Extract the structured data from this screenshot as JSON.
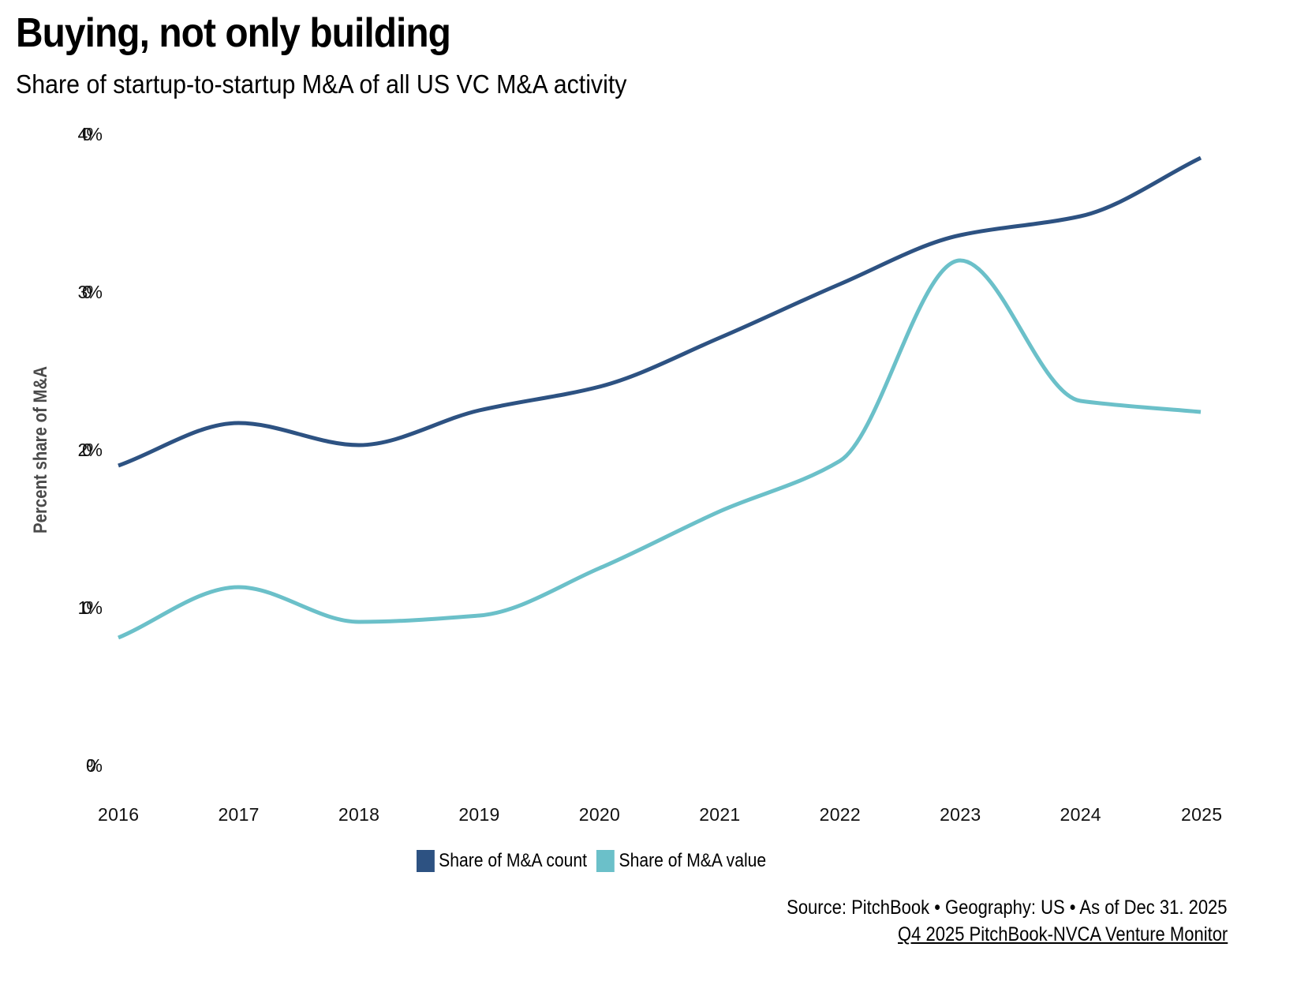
{
  "header": {
    "title": "Buying, not only building",
    "subtitle": "Share of startup-to-startup M&A of all US VC M&A activity"
  },
  "footer": {
    "source": "Source: PitchBook • Geography: US • As of Dec 31. 2025",
    "report_link": "Q4 2025 PitchBook-NVCA Venture Monitor"
  },
  "chart_data": {
    "type": "line",
    "title": "Buying, not only building",
    "subtitle": "Share of startup-to-startup M&A of all US VC M&A activity",
    "xlabel": "",
    "ylabel": "Percent share of M&A",
    "x": [
      "2016",
      "2017",
      "2018",
      "2019",
      "2020",
      "2021",
      "2022",
      "2023",
      "2024",
      "2025"
    ],
    "ylim": [
      0,
      40
    ],
    "yticks": [
      0,
      10,
      20,
      30,
      40
    ],
    "ytick_labels": [
      "0%",
      "10%",
      "20%",
      "30%",
      "40%"
    ],
    "grid": false,
    "legend_position": "bottom-center",
    "series": [
      {
        "name": "Share of M&A count",
        "color": "#2d5282",
        "values": [
          19.0,
          21.7,
          20.3,
          22.5,
          24.0,
          27.1,
          30.5,
          33.6,
          34.8,
          38.5
        ]
      },
      {
        "name": "Share of M&A value",
        "color": "#6bc0c9",
        "values": [
          8.1,
          11.3,
          9.1,
          9.5,
          12.5,
          16.1,
          19.3,
          32.0,
          23.1,
          22.4
        ]
      }
    ]
  }
}
